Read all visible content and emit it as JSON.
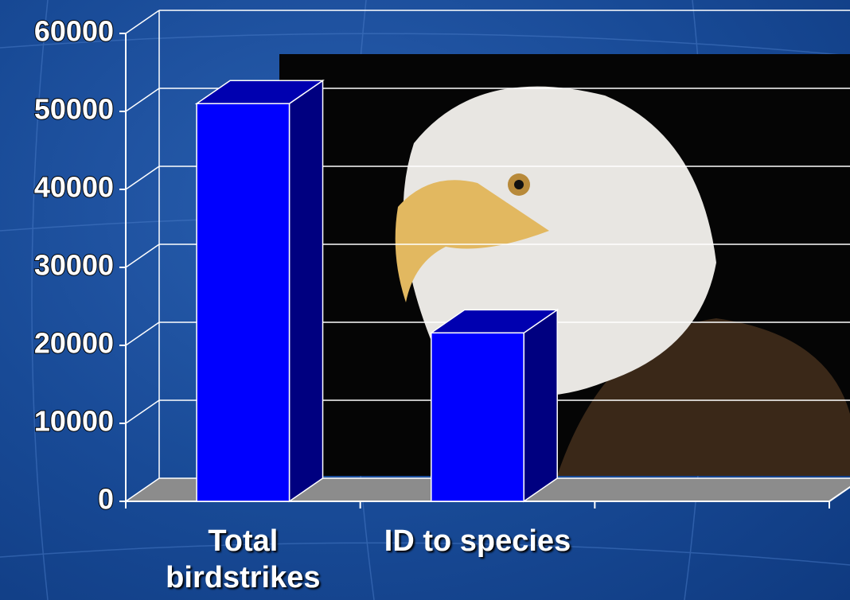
{
  "chart_data": {
    "type": "bar3d",
    "categories": [
      "Total birdstrikes",
      "ID to species",
      null
    ],
    "values": [
      51000,
      21600,
      null
    ],
    "color": "#0000ff",
    "ylim": [
      0,
      60000
    ],
    "yticks": [
      0,
      10000,
      20000,
      30000,
      40000,
      50000,
      60000
    ],
    "grid": true
  }
}
